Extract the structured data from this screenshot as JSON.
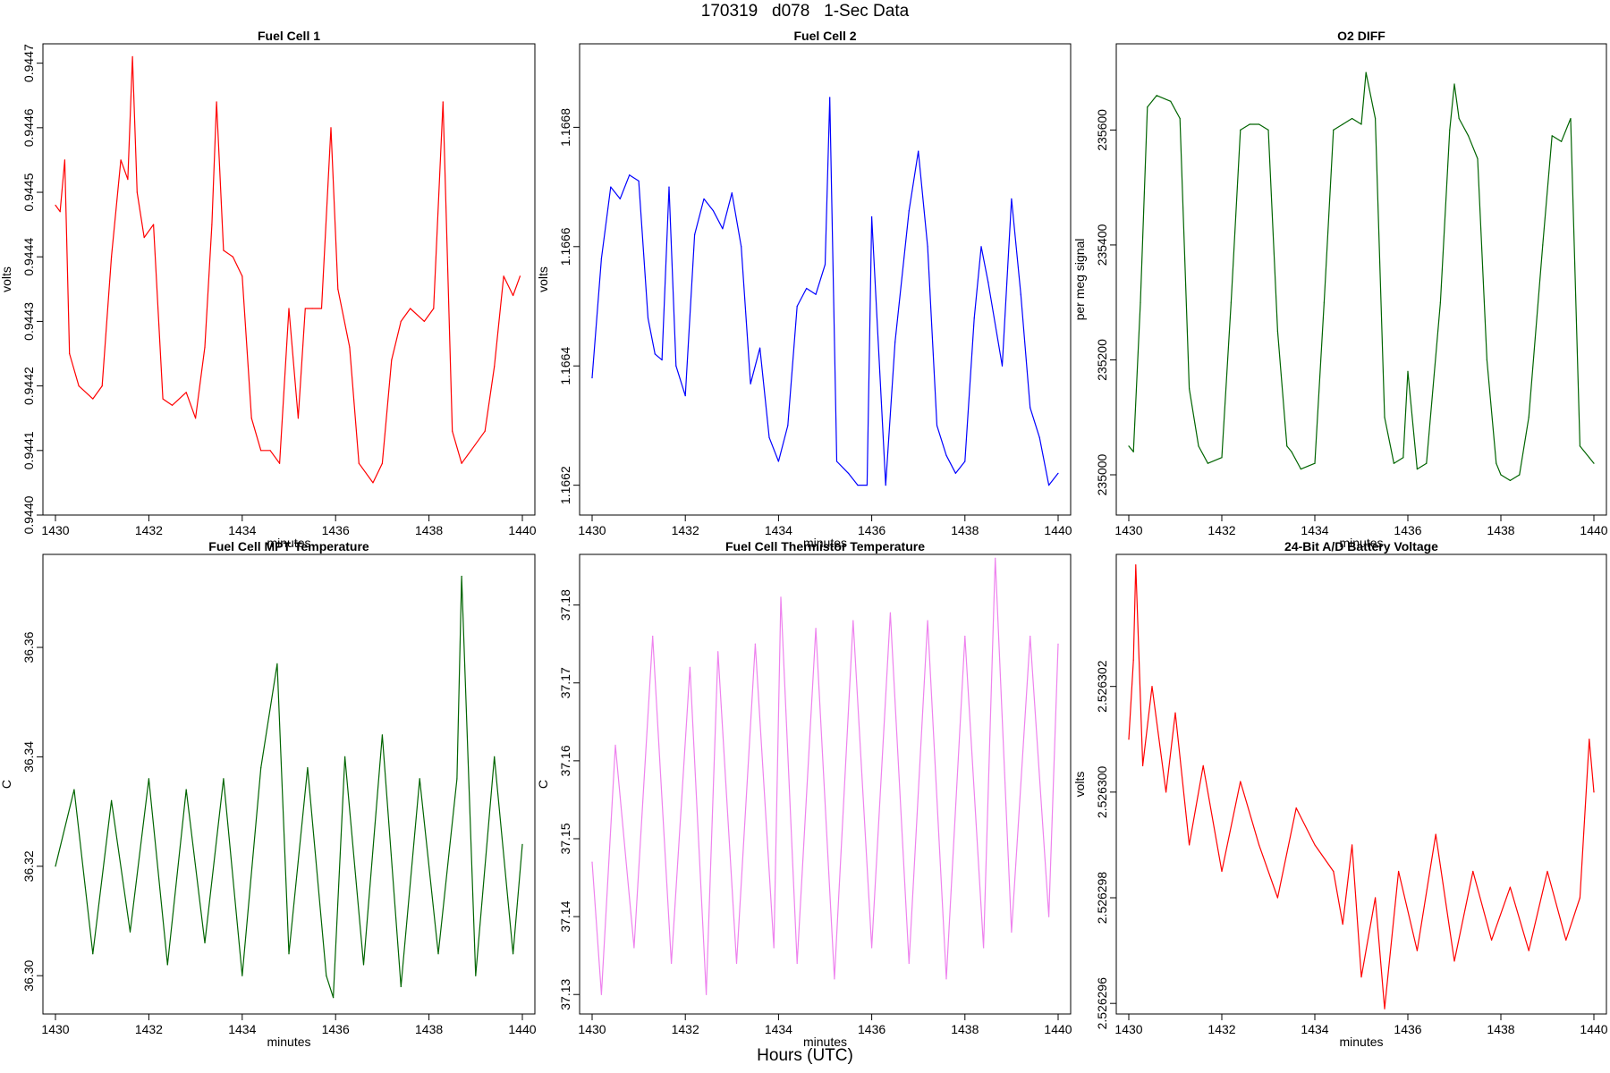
{
  "page_title": "170319   d078   1-Sec Data",
  "x_caption": "Hours (UTC)",
  "chart_data": [
    {
      "type": "line",
      "title": "Fuel Cell 1",
      "xlabel": "minutes",
      "ylabel": "volts",
      "color": "#ff0000",
      "xlim": [
        1430,
        1440
      ],
      "ylim": [
        0.944,
        0.94473
      ],
      "xticks": [
        1430,
        1432,
        1434,
        1436,
        1438,
        1440
      ],
      "yticks": [
        0.944,
        0.9441,
        0.9442,
        0.9443,
        0.9444,
        0.9445,
        0.9446,
        0.9447
      ],
      "ytick_labels": [
        "0.9440",
        "0.9441",
        "0.9442",
        "0.9443",
        "0.9444",
        "0.9445",
        "0.9446",
        "0.9447"
      ],
      "x": [
        1430.0,
        1430.1,
        1430.2,
        1430.3,
        1430.5,
        1430.8,
        1431.0,
        1431.2,
        1431.4,
        1431.55,
        1431.65,
        1431.75,
        1431.9,
        1432.1,
        1432.3,
        1432.5,
        1432.8,
        1433.0,
        1433.2,
        1433.35,
        1433.45,
        1433.6,
        1433.8,
        1434.0,
        1434.2,
        1434.4,
        1434.6,
        1434.8,
        1435.0,
        1435.2,
        1435.35,
        1435.5,
        1435.7,
        1435.9,
        1436.05,
        1436.3,
        1436.5,
        1436.8,
        1437.0,
        1437.2,
        1437.4,
        1437.6,
        1437.9,
        1438.1,
        1438.3,
        1438.5,
        1438.7,
        1438.9,
        1439.2,
        1439.4,
        1439.6,
        1439.8,
        1439.95
      ],
      "y": [
        0.94448,
        0.94447,
        0.94455,
        0.94425,
        0.9442,
        0.94418,
        0.9442,
        0.9444,
        0.94455,
        0.94452,
        0.94471,
        0.9445,
        0.94443,
        0.94445,
        0.94418,
        0.94417,
        0.94419,
        0.94415,
        0.94426,
        0.94445,
        0.94464,
        0.94441,
        0.9444,
        0.94437,
        0.94415,
        0.9441,
        0.9441,
        0.94408,
        0.94432,
        0.94415,
        0.94432,
        0.94432,
        0.94432,
        0.9446,
        0.94435,
        0.94426,
        0.94408,
        0.94405,
        0.94408,
        0.94424,
        0.9443,
        0.94432,
        0.9443,
        0.94432,
        0.94464,
        0.94413,
        0.94408,
        0.9441,
        0.94413,
        0.94423,
        0.94437,
        0.94434,
        0.94437
      ]
    },
    {
      "type": "line",
      "title": "Fuel Cell 2",
      "xlabel": "minutes",
      "ylabel": "volts",
      "color": "#0000ff",
      "xlim": [
        1430,
        1440
      ],
      "ylim": [
        1.16615,
        1.16694
      ],
      "xticks": [
        1430,
        1432,
        1434,
        1436,
        1438,
        1440
      ],
      "yticks": [
        1.1662,
        1.1664,
        1.1666,
        1.1668
      ],
      "ytick_labels": [
        "1.1662",
        "1.1664",
        "1.1666",
        "1.1668"
      ],
      "x": [
        1430.0,
        1430.2,
        1430.4,
        1430.6,
        1430.8,
        1431.0,
        1431.2,
        1431.35,
        1431.5,
        1431.65,
        1431.8,
        1432.0,
        1432.2,
        1432.4,
        1432.6,
        1432.8,
        1433.0,
        1433.2,
        1433.4,
        1433.6,
        1433.8,
        1434.0,
        1434.2,
        1434.4,
        1434.6,
        1434.8,
        1435.0,
        1435.1,
        1435.25,
        1435.5,
        1435.7,
        1435.9,
        1436.0,
        1436.3,
        1436.5,
        1436.8,
        1437.0,
        1437.2,
        1437.4,
        1437.6,
        1437.8,
        1438.0,
        1438.2,
        1438.35,
        1438.5,
        1438.8,
        1439.0,
        1439.2,
        1439.4,
        1439.6,
        1439.8,
        1440.0
      ],
      "y": [
        1.16638,
        1.16658,
        1.1667,
        1.16668,
        1.16672,
        1.16671,
        1.16648,
        1.16642,
        1.16641,
        1.1667,
        1.1664,
        1.16635,
        1.16662,
        1.16668,
        1.16666,
        1.16663,
        1.16669,
        1.1666,
        1.16637,
        1.16643,
        1.16628,
        1.16624,
        1.1663,
        1.1665,
        1.16653,
        1.16652,
        1.16657,
        1.16685,
        1.16624,
        1.16622,
        1.1662,
        1.1662,
        1.16665,
        1.1662,
        1.16644,
        1.16666,
        1.16676,
        1.1666,
        1.1663,
        1.16625,
        1.16622,
        1.16624,
        1.16648,
        1.1666,
        1.16654,
        1.1664,
        1.16668,
        1.16652,
        1.16633,
        1.16628,
        1.1662,
        1.16622
      ]
    },
    {
      "type": "line",
      "title": "O2 DIFF",
      "xlabel": "minutes",
      "ylabel": "per meg signal",
      "color": "#006400",
      "xlim": [
        1430,
        1440
      ],
      "ylim": [
        234930,
        235750
      ],
      "xticks": [
        1430,
        1432,
        1434,
        1436,
        1438,
        1440
      ],
      "yticks": [
        235000,
        235200,
        235400,
        235600
      ],
      "ytick_labels": [
        "235000",
        "235200",
        "235400",
        "235600"
      ],
      "x": [
        1430.0,
        1430.1,
        1430.25,
        1430.4,
        1430.6,
        1430.9,
        1431.1,
        1431.3,
        1431.5,
        1431.7,
        1432.0,
        1432.2,
        1432.4,
        1432.6,
        1432.8,
        1433.0,
        1433.2,
        1433.4,
        1433.5,
        1433.7,
        1434.0,
        1434.2,
        1434.4,
        1434.6,
        1434.8,
        1435.0,
        1435.1,
        1435.3,
        1435.5,
        1435.7,
        1435.9,
        1436.0,
        1436.2,
        1436.4,
        1436.7,
        1436.9,
        1437.0,
        1437.1,
        1437.3,
        1437.5,
        1437.7,
        1437.9,
        1438.0,
        1438.2,
        1438.4,
        1438.6,
        1438.9,
        1439.1,
        1439.3,
        1439.5,
        1439.7,
        1439.9,
        1440.0
      ],
      "y": [
        235050,
        235040,
        235300,
        235640,
        235660,
        235650,
        235620,
        235150,
        235050,
        235020,
        235030,
        235300,
        235600,
        235610,
        235610,
        235600,
        235250,
        235050,
        235040,
        235010,
        235020,
        235300,
        235600,
        235610,
        235620,
        235610,
        235700,
        235620,
        235100,
        235020,
        235030,
        235180,
        235010,
        235020,
        235300,
        235600,
        235680,
        235620,
        235590,
        235550,
        235200,
        235020,
        235000,
        234990,
        235000,
        235100,
        235400,
        235590,
        235580,
        235620,
        235050,
        235030,
        235020
      ]
    },
    {
      "type": "line",
      "title": "Fuel Cell MPT Temperature",
      "xlabel": "minutes",
      "ylabel": "C",
      "color": "#006400",
      "xlim": [
        1430,
        1440
      ],
      "ylim": [
        36.293,
        36.377
      ],
      "xticks": [
        1430,
        1432,
        1434,
        1436,
        1438,
        1440
      ],
      "yticks": [
        36.3,
        36.32,
        36.34,
        36.36
      ],
      "ytick_labels": [
        "36.30",
        "36.32",
        "36.34",
        "36.36"
      ],
      "x": [
        1430.0,
        1430.4,
        1430.8,
        1431.2,
        1431.6,
        1432.0,
        1432.4,
        1432.8,
        1433.2,
        1433.6,
        1434.0,
        1434.4,
        1434.75,
        1435.0,
        1435.4,
        1435.8,
        1435.95,
        1436.2,
        1436.6,
        1437.0,
        1437.4,
        1437.8,
        1438.2,
        1438.6,
        1438.7,
        1439.0,
        1439.4,
        1439.8,
        1440.0
      ],
      "y": [
        36.32,
        36.334,
        36.304,
        36.332,
        36.308,
        36.336,
        36.302,
        36.334,
        36.306,
        36.336,
        36.3,
        36.338,
        36.357,
        36.304,
        36.338,
        36.3,
        36.296,
        36.34,
        36.302,
        36.344,
        36.298,
        36.336,
        36.304,
        36.336,
        36.373,
        36.3,
        36.34,
        36.304,
        36.324
      ]
    },
    {
      "type": "line",
      "title": "Fuel Cell Thermistor Temperature",
      "xlabel": "minutes",
      "ylabel": "C",
      "color": "#ee82ee",
      "xlim": [
        1430,
        1440
      ],
      "ylim": [
        37.1275,
        37.1865
      ],
      "xticks": [
        1430,
        1432,
        1434,
        1436,
        1438,
        1440
      ],
      "yticks": [
        37.13,
        37.14,
        37.15,
        37.16,
        37.17,
        37.18
      ],
      "ytick_labels": [
        "37.13",
        "37.14",
        "37.15",
        "37.16",
        "37.17",
        "37.18"
      ],
      "x": [
        1430.0,
        1430.2,
        1430.5,
        1430.9,
        1431.3,
        1431.7,
        1432.1,
        1432.45,
        1432.7,
        1433.1,
        1433.5,
        1433.9,
        1434.05,
        1434.4,
        1434.8,
        1435.2,
        1435.6,
        1436.0,
        1436.4,
        1436.8,
        1437.2,
        1437.6,
        1438.0,
        1438.4,
        1438.65,
        1439.0,
        1439.4,
        1439.8,
        1440.0
      ],
      "y": [
        37.147,
        37.13,
        37.162,
        37.136,
        37.176,
        37.134,
        37.172,
        37.13,
        37.174,
        37.134,
        37.175,
        37.136,
        37.181,
        37.134,
        37.177,
        37.132,
        37.178,
        37.136,
        37.179,
        37.134,
        37.178,
        37.132,
        37.176,
        37.136,
        37.186,
        37.138,
        37.176,
        37.14,
        37.175
      ]
    },
    {
      "type": "line",
      "title": "24-Bit A/D Battery Voltage",
      "xlabel": "minutes",
      "ylabel": "volts",
      "color": "#ff0000",
      "xlim": [
        1430,
        1440
      ],
      "ylim": [
        2.5262958,
        2.5263045
      ],
      "xticks": [
        1430,
        1432,
        1434,
        1436,
        1438,
        1440
      ],
      "yticks": [
        2.526296,
        2.526298,
        2.5263,
        2.526302
      ],
      "ytick_labels": [
        "2.526296",
        "2.526298",
        "2.526300",
        "2.526302"
      ],
      "x": [
        1430.0,
        1430.1,
        1430.15,
        1430.3,
        1430.5,
        1430.8,
        1431.0,
        1431.3,
        1431.6,
        1432.0,
        1432.4,
        1432.8,
        1433.2,
        1433.6,
        1434.0,
        1434.4,
        1434.6,
        1434.8,
        1435.0,
        1435.3,
        1435.5,
        1435.8,
        1436.2,
        1436.6,
        1437.0,
        1437.4,
        1437.8,
        1438.2,
        1438.6,
        1439.0,
        1439.4,
        1439.7,
        1439.9,
        1440.0
      ],
      "y": [
        2.526301,
        2.5263025,
        2.5263043,
        2.5263005,
        2.526302,
        2.5263,
        2.5263015,
        2.526299,
        2.5263005,
        2.5262985,
        2.5263002,
        2.526299,
        2.526298,
        2.5262997,
        2.526299,
        2.5262985,
        2.5262975,
        2.526299,
        2.5262965,
        2.526298,
        2.5262959,
        2.5262985,
        2.526297,
        2.5262992,
        2.5262968,
        2.5262985,
        2.5262972,
        2.5262982,
        2.526297,
        2.5262985,
        2.5262972,
        2.526298,
        2.526301,
        2.5263
      ]
    }
  ]
}
